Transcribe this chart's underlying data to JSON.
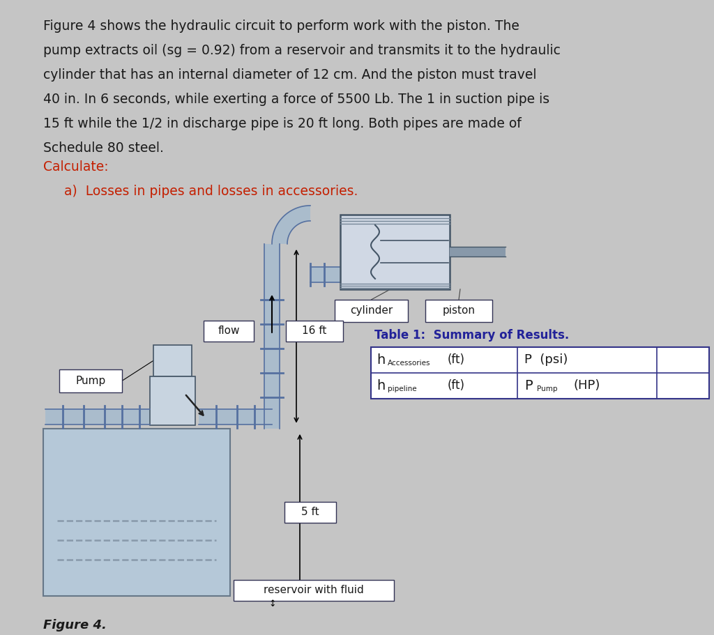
{
  "background_color": "#c5c5c5",
  "text_color_black": "#1a1a1a",
  "text_color_red": "#c41f00",
  "text_color_blue": "#1a1aaa",
  "pipe_color": "#aabccc",
  "pipe_dark": "#6080a0",
  "pipe_edge": "#5570a0",
  "reservoir_fill": "#b5c8d8",
  "reservoir_edge": "#667788",
  "pump_fill": "#c8d4e0",
  "pump_edge": "#445566",
  "cyl_fill": "#d0d8e4",
  "cyl_hatch": "#8899aa",
  "table_border": "#333388",
  "table_title_color": "#222299",
  "white": "#ffffff",
  "line1": "Figure 4 shows the hydraulic circuit to perform work with the piston. The",
  "line2": "pump extracts oil (sg = 0.92) from a reservoir and transmits it to the hydraulic",
  "line3": "cylinder that has an internal diameter of 12 cm. And the piston must travel",
  "line4": "40 in. In 6 seconds, while exerting a force of 5500 Lb. The 1 in suction pipe is",
  "line5": "15 ft while the 1/2 in discharge pipe is 20 ft long. Both pipes are made of",
  "line6": "Schedule 80 steel.",
  "calc_label": "Calculate:",
  "part_a": "a)  Losses in pipes and losses in accessories.",
  "fig_label": "Figure 4.",
  "lbl_cylinder": "cylinder",
  "lbl_piston": "piston",
  "lbl_flow": "flow",
  "lbl_16ft": "16 ft",
  "lbl_5ft": "5 ft",
  "lbl_pump": "Pump",
  "lbl_reservoir": "reservoir with fluid",
  "tbl_title": "Table 1:  Summary of Results.",
  "tbl_r1c1a": "h",
  "tbl_r1c1b": "Accessories",
  "tbl_r1c1c": " (ft)",
  "tbl_r1c2": "P (psi)",
  "tbl_r2c1a": "h",
  "tbl_r2c1b": "pipeline",
  "tbl_r2c1c": " (ft)",
  "tbl_r2c2a": "P",
  "tbl_r2c2b": "Pump",
  "tbl_r2c2c": " (HP)"
}
